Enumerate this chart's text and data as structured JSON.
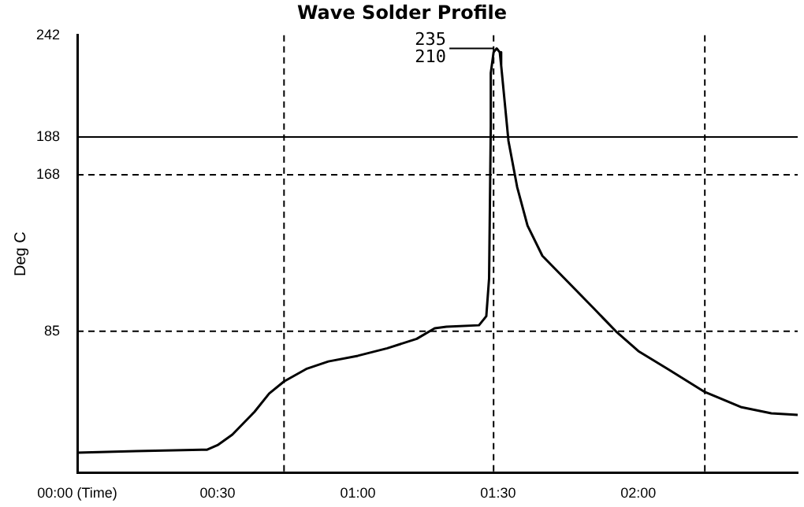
{
  "chart_data": {
    "type": "line",
    "title": "Wave Solder Profile",
    "ylabel": "Deg C",
    "x": [
      0,
      0.21,
      0.463,
      0.5,
      0.553,
      0.632,
      0.684,
      0.737,
      0.816,
      0.895,
      1.0,
      1.105,
      1.21,
      1.274,
      1.316,
      1.432,
      1.458,
      1.468,
      1.474,
      1.474,
      1.484,
      1.495,
      1.506,
      1.511,
      1.537,
      1.568,
      1.605,
      1.658,
      1.737,
      1.842,
      1.92,
      2.0,
      2.105,
      2.237,
      2.368,
      2.474,
      2.568
    ],
    "series": [
      {
        "color": "#000000",
        "values": [
          20.6,
          21.4,
          22.2,
          24.6,
          30.2,
          42.3,
          52,
          58.4,
          65,
          69,
          72,
          76,
          81,
          86.6,
          87.4,
          88.2,
          93,
          113,
          194,
          222,
          233,
          235,
          233,
          226,
          186,
          161.5,
          141,
          125,
          113,
          97,
          85,
          74.5,
          65,
          52.8,
          44.7,
          41.5,
          40.7
        ]
      }
    ],
    "xlim": [
      0,
      2.568
    ],
    "ylim": [
      10,
      242
    ],
    "xticks": [
      {
        "value": 0,
        "label": "00:00 (Time)"
      },
      {
        "value": 0.5,
        "label": "00:30"
      },
      {
        "value": 1,
        "label": "01:00"
      },
      {
        "value": 1.5,
        "label": "01:30"
      },
      {
        "value": 2,
        "label": "02:00"
      }
    ],
    "yticks": [
      85,
      168,
      188,
      242
    ],
    "ref_lines": [
      {
        "axis": "y",
        "value": 188,
        "line_style": "solid"
      },
      {
        "axis": "y",
        "value": 168,
        "line_style": "dashed"
      },
      {
        "axis": "y",
        "value": 85,
        "line_style": "dashed"
      },
      {
        "axis": "x",
        "value": 0.737,
        "line_style": "dashed"
      },
      {
        "axis": "x",
        "value": 1.484,
        "line_style": "dashed"
      },
      {
        "axis": "x",
        "value": 2.237,
        "line_style": "dashed"
      }
    ],
    "annotations": [
      {
        "text": "235",
        "x": 1.495,
        "y": 235
      },
      "210"
    ],
    "grid": false,
    "legend": false,
    "marker": "none",
    "line_style": "solid"
  }
}
